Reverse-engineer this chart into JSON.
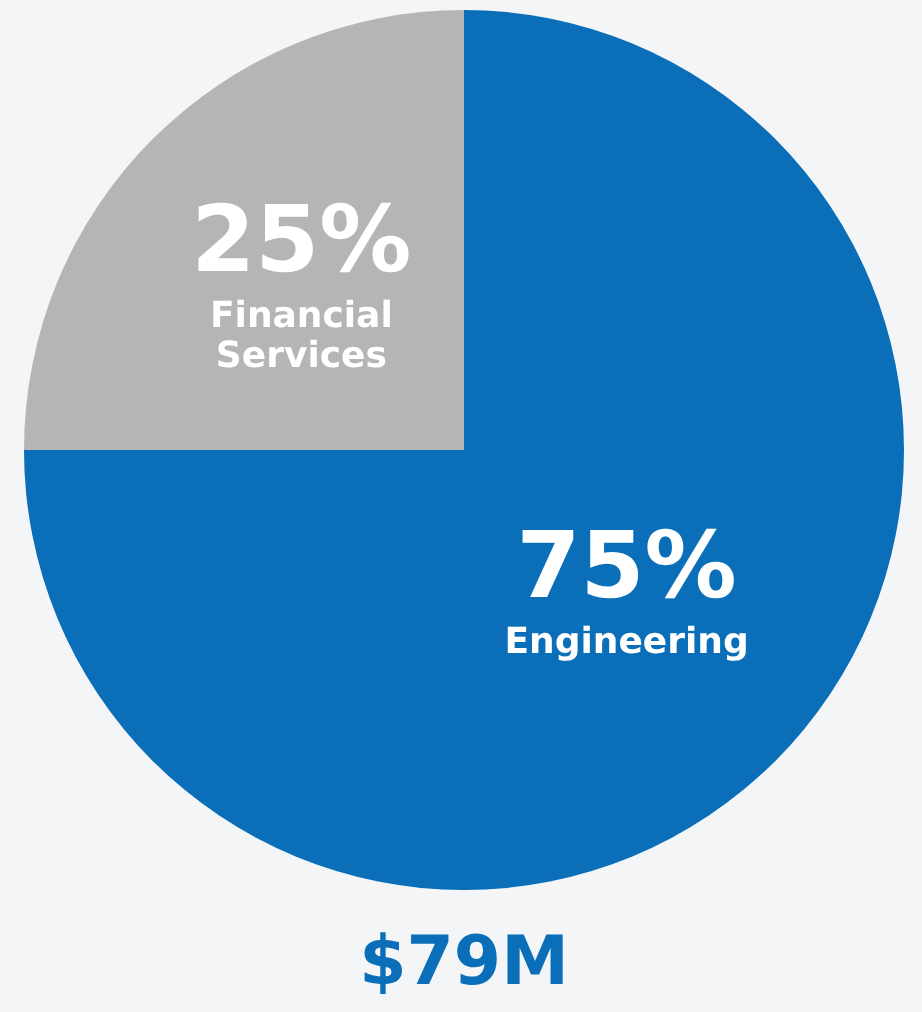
{
  "chart_data": {
    "type": "pie",
    "categories": [
      "Engineering",
      "Financial Services"
    ],
    "values": [
      75,
      25
    ],
    "colors": [
      "#0a6fb8",
      "#b5b5b5"
    ],
    "value_labels": [
      "75%",
      "25%"
    ],
    "annotations": [
      "$79M"
    ]
  }
}
